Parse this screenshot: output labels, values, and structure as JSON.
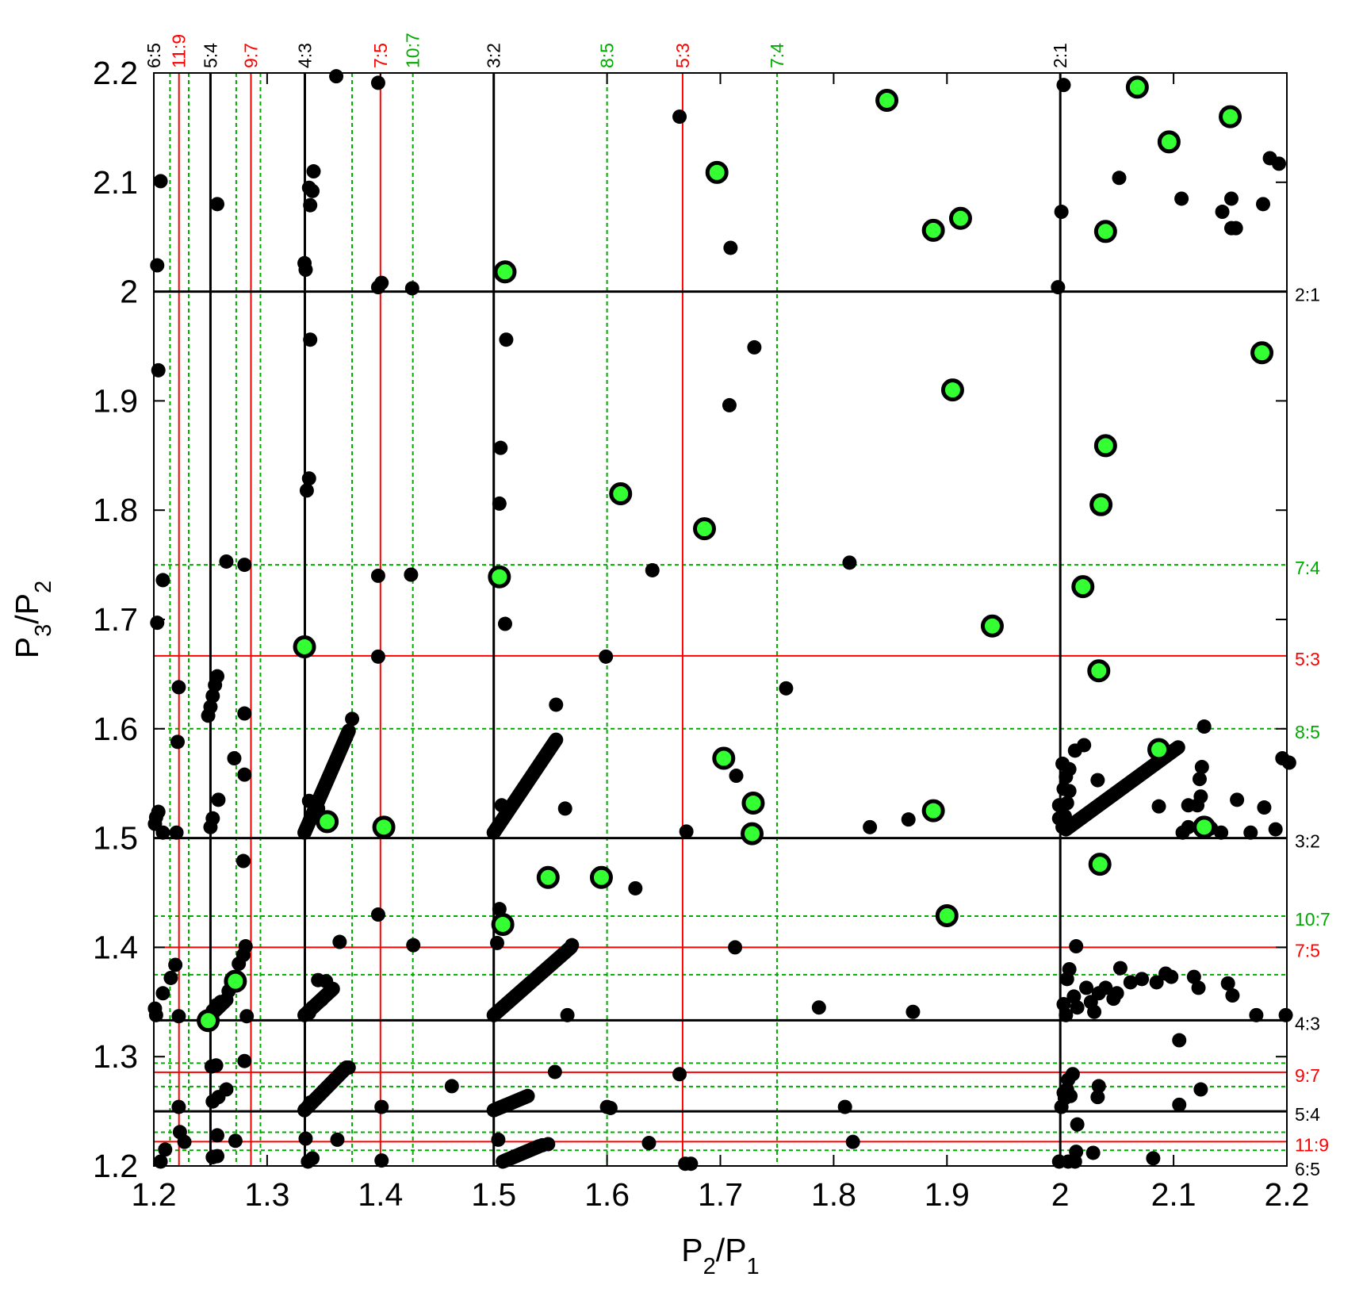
{
  "chart_data": {
    "type": "scatter",
    "title": "",
    "xlabel": {
      "main": "P",
      "sub": "2",
      "mid": "/P",
      "sub2": "1"
    },
    "ylabel": {
      "main": "P",
      "sub": "3",
      "mid": "/P",
      "sub2": "2"
    },
    "xlim": [
      1.2,
      2.2
    ],
    "ylim": [
      1.2,
      2.2
    ],
    "x_ticks": [
      {
        "v": 1.2,
        "label": "1.2"
      },
      {
        "v": 1.3,
        "label": "1.3"
      },
      {
        "v": 1.4,
        "label": "1.4"
      },
      {
        "v": 1.5,
        "label": "1.5"
      },
      {
        "v": 1.6,
        "label": "1.6"
      },
      {
        "v": 1.7,
        "label": "1.7"
      },
      {
        "v": 1.8,
        "label": "1.8"
      },
      {
        "v": 1.9,
        "label": "1.9"
      },
      {
        "v": 2.0,
        "label": "2"
      },
      {
        "v": 2.1,
        "label": "2.1"
      },
      {
        "v": 2.2,
        "label": "2.2"
      }
    ],
    "y_ticks": [
      {
        "v": 1.2,
        "label": "1.2"
      },
      {
        "v": 1.3,
        "label": "1.3"
      },
      {
        "v": 1.4,
        "label": "1.4"
      },
      {
        "v": 1.5,
        "label": "1.5"
      },
      {
        "v": 1.6,
        "label": "1.6"
      },
      {
        "v": 1.7,
        "label": "1.7"
      },
      {
        "v": 1.8,
        "label": "1.8"
      },
      {
        "v": 1.9,
        "label": "1.9"
      },
      {
        "v": 2.0,
        "label": "2"
      },
      {
        "v": 2.1,
        "label": "2.1"
      },
      {
        "v": 2.2,
        "label": "2.2"
      }
    ],
    "colors": {
      "first_order": "#000000",
      "second_order": "#ff0000",
      "third_order": "#00aa00",
      "highlight_fill": "#33ff33"
    },
    "resonances": [
      {
        "label": "6:5",
        "value": 1.2,
        "order": "first_order"
      },
      {
        "label": "11:9",
        "value": 1.2222,
        "order": "second_order"
      },
      {
        "label": "5:4",
        "value": 1.25,
        "order": "first_order"
      },
      {
        "label": "9:7",
        "value": 1.2857,
        "order": "second_order"
      },
      {
        "label": "4:3",
        "value": 1.3333,
        "order": "first_order"
      },
      {
        "label": "7:5",
        "value": 1.4,
        "order": "second_order"
      },
      {
        "label": "10:7",
        "value": 1.4286,
        "order": "third_order"
      },
      {
        "label": "3:2",
        "value": 1.5,
        "order": "first_order"
      },
      {
        "label": "8:5",
        "value": 1.6,
        "order": "third_order"
      },
      {
        "label": "5:3",
        "value": 1.6667,
        "order": "second_order"
      },
      {
        "label": "7:4",
        "value": 1.75,
        "order": "third_order"
      },
      {
        "label": "2:1",
        "value": 2.0,
        "order": "first_order"
      }
    ],
    "unlabeled_third_order_lines": [
      1.2143,
      1.2308,
      1.2727,
      1.2941,
      1.375
    ],
    "black_points": [
      [
        1.203,
        2.024
      ],
      [
        1.206,
        2.101
      ],
      [
        1.204,
        1.928
      ],
      [
        1.208,
        1.736
      ],
      [
        1.203,
        1.697
      ],
      [
        1.222,
        1.638
      ],
      [
        1.221,
        1.588
      ],
      [
        1.204,
        1.524
      ],
      [
        1.202,
        1.519
      ],
      [
        1.201,
        1.513
      ],
      [
        1.208,
        1.505
      ],
      [
        1.22,
        1.505
      ],
      [
        1.201,
        1.344
      ],
      [
        1.208,
        1.358
      ],
      [
        1.215,
        1.372
      ],
      [
        1.219,
        1.384
      ],
      [
        1.222,
        1.337
      ],
      [
        1.202,
        1.338
      ],
      [
        1.222,
        1.254
      ],
      [
        1.223,
        1.231
      ],
      [
        1.227,
        1.222
      ],
      [
        1.21,
        1.215
      ],
      [
        1.206,
        1.204
      ],
      [
        1.256,
        2.08
      ],
      [
        1.264,
        1.753
      ],
      [
        1.256,
        1.648
      ],
      [
        1.254,
        1.64
      ],
      [
        1.252,
        1.63
      ],
      [
        1.25,
        1.62
      ],
      [
        1.248,
        1.612
      ],
      [
        1.257,
        1.535
      ],
      [
        1.252,
        1.518
      ],
      [
        1.25,
        1.51
      ],
      [
        1.271,
        1.573
      ],
      [
        1.28,
        1.75
      ],
      [
        1.28,
        1.614
      ],
      [
        1.28,
        1.558
      ],
      [
        1.279,
        1.479
      ],
      [
        1.281,
        1.401
      ],
      [
        1.279,
        1.393
      ],
      [
        1.275,
        1.385
      ],
      [
        1.266,
        1.36
      ],
      [
        1.259,
        1.35
      ],
      [
        1.255,
        1.347
      ],
      [
        1.252,
        1.342
      ],
      [
        1.282,
        1.337
      ],
      [
        1.28,
        1.296
      ],
      [
        1.251,
        1.291
      ],
      [
        1.255,
        1.292
      ],
      [
        1.264,
        1.27
      ],
      [
        1.257,
        1.263
      ],
      [
        1.252,
        1.259
      ],
      [
        1.272,
        1.223
      ],
      [
        1.256,
        1.228
      ],
      [
        1.252,
        1.208
      ],
      [
        1.256,
        1.209
      ],
      [
        1.341,
        2.11
      ],
      [
        1.337,
        2.095
      ],
      [
        1.34,
        2.092
      ],
      [
        1.338,
        2.079
      ],
      [
        1.333,
        2.026
      ],
      [
        1.334,
        2.02
      ],
      [
        1.361,
        2.197
      ],
      [
        1.338,
        1.956
      ],
      [
        1.337,
        1.829
      ],
      [
        1.335,
        1.818
      ],
      [
        1.337,
        1.534
      ],
      [
        1.345,
        1.527
      ],
      [
        1.364,
        1.405
      ],
      [
        1.352,
        1.369
      ],
      [
        1.345,
        1.37
      ],
      [
        1.348,
        1.352
      ],
      [
        1.34,
        1.345
      ],
      [
        1.337,
        1.34
      ],
      [
        1.372,
        1.29
      ],
      [
        1.338,
        1.258
      ],
      [
        1.334,
        1.225
      ],
      [
        1.362,
        1.224
      ],
      [
        1.34,
        1.207
      ],
      [
        1.336,
        1.204
      ],
      [
        1.375,
        1.609
      ],
      [
        1.398,
        2.191
      ],
      [
        1.401,
        2.008
      ],
      [
        1.398,
        2.004
      ],
      [
        1.398,
        1.74
      ],
      [
        1.398,
        1.666
      ],
      [
        1.428,
        2.003
      ],
      [
        1.427,
        1.741
      ],
      [
        1.398,
        1.43
      ],
      [
        1.429,
        1.402
      ],
      [
        1.401,
        1.254
      ],
      [
        1.401,
        1.205
      ],
      [
        1.463,
        1.273
      ],
      [
        1.511,
        1.956
      ],
      [
        1.506,
        1.857
      ],
      [
        1.505,
        1.806
      ],
      [
        1.51,
        1.696
      ],
      [
        1.505,
        1.435
      ],
      [
        1.503,
        1.404
      ],
      [
        1.507,
        1.53
      ],
      [
        1.555,
        1.622
      ],
      [
        1.563,
        1.527
      ],
      [
        1.569,
        1.402
      ],
      [
        1.565,
        1.338
      ],
      [
        1.554,
        1.286
      ],
      [
        1.504,
        1.224
      ],
      [
        1.548,
        1.22
      ],
      [
        1.543,
        1.219
      ],
      [
        1.64,
        1.745
      ],
      [
        1.599,
        1.666
      ],
      [
        1.625,
        1.454
      ],
      [
        1.603,
        1.253
      ],
      [
        1.6,
        1.254
      ],
      [
        1.637,
        1.221
      ],
      [
        1.664,
        2.16
      ],
      [
        1.67,
        1.506
      ],
      [
        1.664,
        1.284
      ],
      [
        1.674,
        1.202
      ],
      [
        1.669,
        1.202
      ],
      [
        1.709,
        2.04
      ],
      [
        1.708,
        1.896
      ],
      [
        1.73,
        1.949
      ],
      [
        1.714,
        1.557
      ],
      [
        1.713,
        1.4
      ],
      [
        1.758,
        1.637
      ],
      [
        1.787,
        1.345
      ],
      [
        1.814,
        1.752
      ],
      [
        1.832,
        1.51
      ],
      [
        1.866,
        1.517
      ],
      [
        1.87,
        1.341
      ],
      [
        1.81,
        1.254
      ],
      [
        1.817,
        1.222
      ],
      [
        1.998,
        2.004
      ],
      [
        2.001,
        2.073
      ],
      [
        2.003,
        2.189
      ],
      [
        2.052,
        2.104
      ],
      [
        2.107,
        2.085
      ],
      [
        2.143,
        2.073
      ],
      [
        2.151,
        2.085
      ],
      [
        2.151,
        2.058
      ],
      [
        2.155,
        2.058
      ],
      [
        2.179,
        2.08
      ],
      [
        2.185,
        2.122
      ],
      [
        2.193,
        2.117
      ],
      [
        2.002,
        1.568
      ],
      [
        2.005,
        1.556
      ],
      [
        2.003,
        1.545
      ],
      [
        2.006,
        1.532
      ],
      [
        2.004,
        1.52
      ],
      [
        2.002,
        1.51
      ],
      [
        1.999,
        1.518
      ],
      [
        1.999,
        1.53
      ],
      [
        2.008,
        1.543
      ],
      [
        2.008,
        1.563
      ],
      [
        2.013,
        1.58
      ],
      [
        2.021,
        1.585
      ],
      [
        2.033,
        1.553
      ],
      [
        2.127,
        1.602
      ],
      [
        2.125,
        1.565
      ],
      [
        2.123,
        1.554
      ],
      [
        2.124,
        1.538
      ],
      [
        2.121,
        1.53
      ],
      [
        2.113,
        1.53
      ],
      [
        2.113,
        1.51
      ],
      [
        2.087,
        1.529
      ],
      [
        2.108,
        1.505
      ],
      [
        2.133,
        1.509
      ],
      [
        2.142,
        1.505
      ],
      [
        2.156,
        1.535
      ],
      [
        2.168,
        1.505
      ],
      [
        2.18,
        1.528
      ],
      [
        2.19,
        1.508
      ],
      [
        2.196,
        1.573
      ],
      [
        2.202,
        1.569
      ],
      [
        2.014,
        1.401
      ],
      [
        2.008,
        1.38
      ],
      [
        2.006,
        1.371
      ],
      [
        2.012,
        1.355
      ],
      [
        2.015,
        1.345
      ],
      [
        2.023,
        1.363
      ],
      [
        2.027,
        1.35
      ],
      [
        2.034,
        1.358
      ],
      [
        2.04,
        1.363
      ],
      [
        2.047,
        1.353
      ],
      [
        2.05,
        1.358
      ],
      [
        2.053,
        1.381
      ],
      [
        2.062,
        1.368
      ],
      [
        2.072,
        1.371
      ],
      [
        2.085,
        1.368
      ],
      [
        2.093,
        1.376
      ],
      [
        2.098,
        1.373
      ],
      [
        2.118,
        1.373
      ],
      [
        2.122,
        1.363
      ],
      [
        2.148,
        1.367
      ],
      [
        2.152,
        1.356
      ],
      [
        2.173,
        1.338
      ],
      [
        2.199,
        1.338
      ],
      [
        2.005,
        1.338
      ],
      [
        2.003,
        1.348
      ],
      [
        2.03,
        1.341
      ],
      [
        2.105,
        1.315
      ],
      [
        2.011,
        1.284
      ],
      [
        2.007,
        1.279
      ],
      [
        2.006,
        1.27
      ],
      [
        2.003,
        1.267
      ],
      [
        2.009,
        1.264
      ],
      [
        2.004,
        1.262
      ],
      [
        2.034,
        1.273
      ],
      [
        2.033,
        1.263
      ],
      [
        2.105,
        1.256
      ],
      [
        2.124,
        1.27
      ],
      [
        2.015,
        1.238
      ],
      [
        2.029,
        1.212
      ],
      [
        2.014,
        1.213
      ],
      [
        2.007,
        1.204
      ],
      [
        1.999,
        1.204
      ],
      [
        2.013,
        1.204
      ],
      [
        2.082,
        1.207
      ],
      [
        2.001,
        1.254
      ]
    ],
    "black_segments": [
      [
        [
          1.333,
          1.505
        ],
        [
          1.372,
          1.598
        ]
      ],
      [
        [
          1.333,
          1.338
        ],
        [
          1.358,
          1.362
        ]
      ],
      [
        [
          1.333,
          1.251
        ],
        [
          1.37,
          1.29
        ]
      ],
      [
        [
          1.5,
          1.505
        ],
        [
          1.555,
          1.59
        ]
      ],
      [
        [
          1.5,
          1.338
        ],
        [
          1.568,
          1.4
        ]
      ],
      [
        [
          1.5,
          1.251
        ],
        [
          1.53,
          1.264
        ]
      ],
      [
        [
          1.508,
          1.204
        ],
        [
          1.54,
          1.218
        ]
      ],
      [
        [
          2.005,
          1.508
        ],
        [
          2.104,
          1.583
        ]
      ],
      [
        [
          1.25,
          1.338
        ],
        [
          1.264,
          1.352
        ]
      ]
    ],
    "highlight_points": [
      [
        1.51,
        2.018
      ],
      [
        1.697,
        2.109
      ],
      [
        1.847,
        2.175
      ],
      [
        1.888,
        2.056
      ],
      [
        1.912,
        2.067
      ],
      [
        2.04,
        2.055
      ],
      [
        2.068,
        2.187
      ],
      [
        2.096,
        2.137
      ],
      [
        2.15,
        2.16
      ],
      [
        1.905,
        1.91
      ],
      [
        2.178,
        1.944
      ],
      [
        2.04,
        1.859
      ],
      [
        1.612,
        1.815
      ],
      [
        1.686,
        1.783
      ],
      [
        2.036,
        1.805
      ],
      [
        1.505,
        1.739
      ],
      [
        2.02,
        1.73
      ],
      [
        1.94,
        1.694
      ],
      [
        1.333,
        1.675
      ],
      [
        2.034,
        1.653
      ],
      [
        1.703,
        1.573
      ],
      [
        2.087,
        1.581
      ],
      [
        1.353,
        1.515
      ],
      [
        1.403,
        1.51
      ],
      [
        1.729,
        1.532
      ],
      [
        1.728,
        1.504
      ],
      [
        1.888,
        1.525
      ],
      [
        2.127,
        1.51
      ],
      [
        2.035,
        1.476
      ],
      [
        1.548,
        1.464
      ],
      [
        1.595,
        1.464
      ],
      [
        1.508,
        1.421
      ],
      [
        1.9,
        1.429
      ],
      [
        1.272,
        1.369
      ],
      [
        1.248,
        1.333
      ]
    ]
  }
}
